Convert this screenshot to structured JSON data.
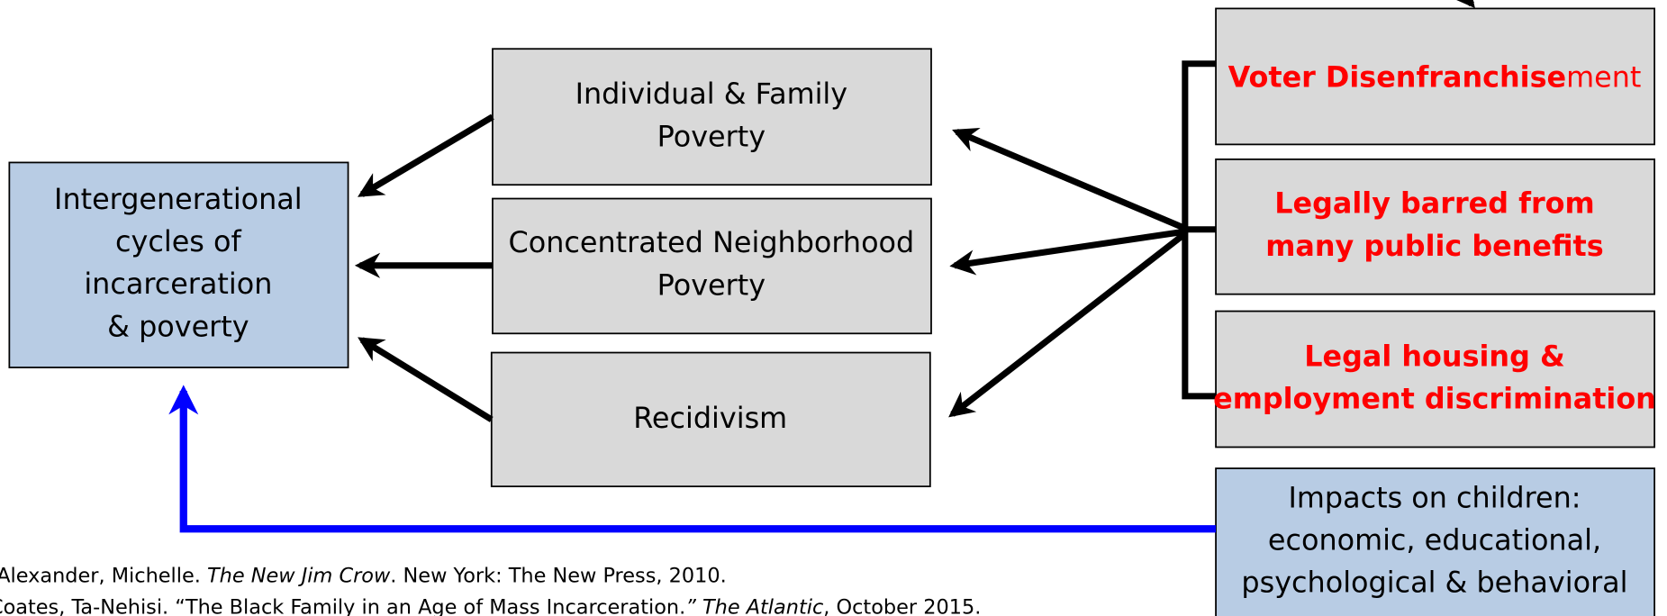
{
  "nodes": [
    {
      "lines": [
        "Intergenerational",
        "cycles of",
        "incarceration",
        "& poverty"
      ]
    },
    {
      "lines": [
        "Individual & Family",
        "Poverty"
      ]
    },
    {
      "lines": [
        "Concentrated Neighborhood",
        "Poverty"
      ]
    },
    {
      "lines": [
        "Recidivism"
      ]
    },
    {
      "parts": [
        "Voter Disenfranchise",
        "ment"
      ]
    },
    {
      "lines": [
        "Legally barred from",
        "many public benefits"
      ]
    },
    {
      "lines": [
        "Legal housing &",
        "employment discrimination"
      ]
    },
    {
      "lines": [
        "Impacts on children:",
        "economic, educational,",
        "psychological & behavioral"
      ]
    }
  ],
  "citations": [
    [
      "Alexander, Michelle. ",
      "The New Jim Crow",
      ". New York: The New Press, 2010."
    ],
    [
      "Coates, Ta-Nehisi. “The Black Family in an Age of Mass Incarceration.",
      "” The Atlantic",
      ", October 2015."
    ]
  ]
}
